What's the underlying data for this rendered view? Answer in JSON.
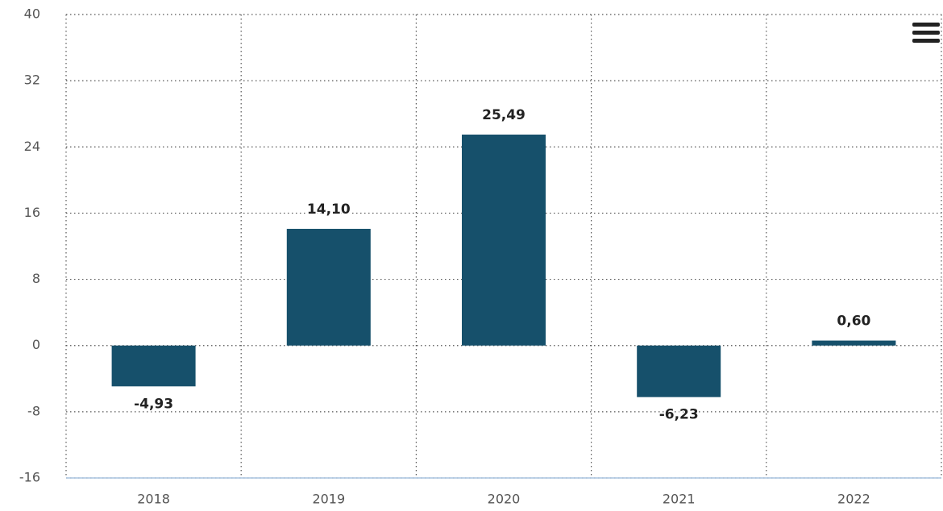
{
  "chart_data": {
    "type": "bar",
    "categories": [
      "2018",
      "2019",
      "2020",
      "2021",
      "2022"
    ],
    "values": [
      -4.93,
      14.1,
      25.49,
      -6.23,
      0.6
    ],
    "value_labels": [
      "-4,93",
      "14,10",
      "25,49",
      "-6,23",
      "0,60"
    ],
    "color": "#16506b",
    "ylim": [
      -16,
      40
    ],
    "yticks": [
      -16,
      -8,
      0,
      8,
      16,
      24,
      32,
      40
    ],
    "grid": true
  }
}
